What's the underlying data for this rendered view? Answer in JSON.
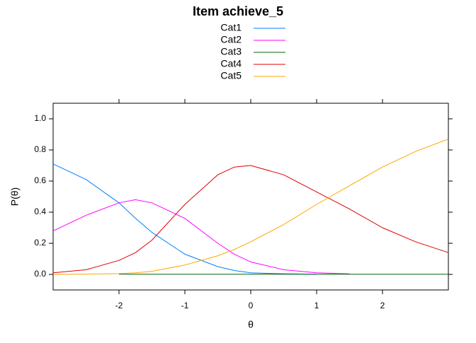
{
  "chart_data": {
    "type": "line",
    "title": "Item achieve_5",
    "x_label": "θ",
    "y_label": "P(θ)",
    "x": [
      -3,
      -2.5,
      -2,
      -1.75,
      -1.5,
      -1,
      -0.5,
      -0.25,
      0,
      0.5,
      1,
      1.5,
      2,
      2.5,
      3
    ],
    "series": [
      {
        "name": "Cat1",
        "color": "#0080ff",
        "values": [
          0.71,
          0.61,
          0.46,
          0.36,
          0.27,
          0.13,
          0.05,
          0.025,
          0.01,
          0.004,
          0.001,
          null,
          null,
          null,
          null
        ]
      },
      {
        "name": "Cat2",
        "color": "#ff00ff",
        "values": [
          0.28,
          0.38,
          0.46,
          0.48,
          0.46,
          0.36,
          0.2,
          0.13,
          0.08,
          0.03,
          0.01,
          0.003,
          null,
          null,
          null
        ]
      },
      {
        "name": "Cat3",
        "color": "#006400",
        "values": [
          null,
          null,
          0.001,
          0.001,
          0.001,
          0.001,
          0.001,
          0.001,
          0.001,
          0.001,
          0.001,
          0.001,
          0.001,
          0.001,
          0.001
        ]
      },
      {
        "name": "Cat4",
        "color": "#e00000",
        "values": [
          0.01,
          0.03,
          0.09,
          0.14,
          0.22,
          0.45,
          0.64,
          0.69,
          0.7,
          0.64,
          0.53,
          0.42,
          0.3,
          0.21,
          0.14
        ]
      },
      {
        "name": "Cat5",
        "color": "#ffa500",
        "values": [
          0,
          0.002,
          0.005,
          0.01,
          0.02,
          0.06,
          0.12,
          0.16,
          0.21,
          0.32,
          0.45,
          0.57,
          0.69,
          0.79,
          0.87
        ]
      }
    ],
    "xlim": [
      -3,
      3
    ],
    "xticks": [
      -2,
      -1,
      0,
      1,
      2
    ],
    "ylim": [
      -0.1,
      1.1
    ],
    "yticks": [
      {
        "value": 0,
        "label": "0.0"
      },
      0.2,
      0.4,
      0.6,
      0.8,
      {
        "value": 1,
        "label": "1.0"
      }
    ],
    "legend": "top"
  }
}
